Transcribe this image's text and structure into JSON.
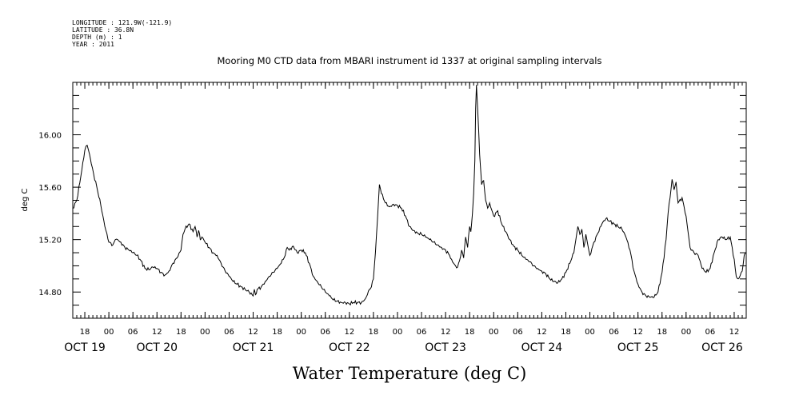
{
  "meta": {
    "longitude": "LONGITUDE : 121.9W(-121.9)",
    "latitude": "LATITUDE : 36.8N",
    "depth": "DEPTH (m) : 1",
    "year": "YEAR : 2011"
  },
  "chart_data": {
    "type": "line",
    "title": "Mooring M0 CTD data from MBARI instrument id 1337 at original sampling intervals",
    "xlabel": "Water Temperature (deg C)",
    "ylabel": "deg C",
    "x_units": "hours since 2011-10-19 00:00",
    "xlim": [
      15,
      183
    ],
    "ylim": [
      14.6,
      16.4
    ],
    "y_ticks": [
      14.8,
      15.2,
      15.6,
      16.0
    ],
    "y_tick_labels": [
      "14.80",
      "15.20",
      "15.60",
      "16.00"
    ],
    "hour_ticks": [
      {
        "t": 18,
        "label": "18"
      },
      {
        "t": 24,
        "label": "00"
      },
      {
        "t": 30,
        "label": "06"
      },
      {
        "t": 36,
        "label": "12"
      },
      {
        "t": 42,
        "label": "18"
      },
      {
        "t": 48,
        "label": "00"
      },
      {
        "t": 54,
        "label": "06"
      },
      {
        "t": 60,
        "label": "12"
      },
      {
        "t": 66,
        "label": "18"
      },
      {
        "t": 72,
        "label": "00"
      },
      {
        "t": 78,
        "label": "06"
      },
      {
        "t": 84,
        "label": "12"
      },
      {
        "t": 90,
        "label": "18"
      },
      {
        "t": 96,
        "label": "00"
      },
      {
        "t": 102,
        "label": "06"
      },
      {
        "t": 108,
        "label": "12"
      },
      {
        "t": 114,
        "label": "18"
      },
      {
        "t": 120,
        "label": "00"
      },
      {
        "t": 126,
        "label": "06"
      },
      {
        "t": 132,
        "label": "12"
      },
      {
        "t": 138,
        "label": "18"
      },
      {
        "t": 144,
        "label": "00"
      },
      {
        "t": 150,
        "label": "06"
      },
      {
        "t": 156,
        "label": "12"
      },
      {
        "t": 162,
        "label": "18"
      },
      {
        "t": 168,
        "label": "00"
      },
      {
        "t": 174,
        "label": "06"
      },
      {
        "t": 180,
        "label": "12"
      }
    ],
    "day_labels": [
      {
        "t": 18,
        "label": "OCT 19"
      },
      {
        "t": 36,
        "label": "OCT 20"
      },
      {
        "t": 60,
        "label": "OCT 21"
      },
      {
        "t": 84,
        "label": "OCT 22"
      },
      {
        "t": 108,
        "label": "OCT 23"
      },
      {
        "t": 132,
        "label": "OCT 24"
      },
      {
        "t": 156,
        "label": "OCT 25"
      },
      {
        "t": 177,
        "label": "OCT 26"
      }
    ],
    "series": [
      {
        "x": [
          15,
          16,
          17,
          18,
          18.6,
          19.2,
          19.6,
          20.2,
          21,
          22,
          23,
          24,
          25,
          25.6,
          26.2,
          27,
          28,
          29,
          30,
          31,
          32,
          33,
          34,
          35,
          36,
          37,
          38,
          39,
          40,
          41,
          42,
          42.5,
          43,
          44,
          45,
          45.5,
          46,
          46.4,
          46.8,
          47.2,
          48,
          49,
          50,
          51,
          52,
          53,
          54,
          55,
          56,
          57,
          58,
          59,
          60,
          60.3,
          60.6,
          61,
          62,
          63,
          64,
          65,
          66,
          67,
          68,
          68.5,
          69,
          70,
          71,
          72,
          73,
          74,
          75,
          76,
          77,
          78,
          79,
          80,
          81,
          82,
          83,
          84,
          85,
          86,
          87,
          88,
          88.5,
          89,
          89.5,
          90,
          90.5,
          91,
          91.5,
          92,
          93,
          94,
          95,
          96,
          97,
          98,
          99,
          100,
          101,
          102,
          103,
          104,
          105,
          106,
          107,
          108,
          109,
          109.5,
          110,
          110.5,
          111,
          111.5,
          112,
          112.5,
          113,
          113.5,
          114,
          114.3,
          114.7,
          115,
          115.3,
          115.5,
          115.7,
          116,
          116.5,
          117,
          117.5,
          118,
          118.5,
          119,
          120,
          121,
          122,
          123,
          124,
          125,
          126,
          127,
          128,
          129,
          130,
          131,
          132,
          133,
          134,
          135,
          136,
          137,
          138,
          139,
          140,
          140.5,
          141,
          141.5,
          142,
          142.5,
          143,
          144,
          145,
          146,
          147,
          148,
          149,
          150,
          151,
          152,
          153,
          154,
          155,
          156,
          157,
          158,
          159,
          160,
          161,
          162,
          163,
          163.5,
          164,
          164.5,
          165,
          165.5,
          166,
          167,
          168,
          169,
          170,
          171,
          172,
          173,
          174,
          175,
          176,
          177,
          178,
          179,
          180,
          180.5,
          181,
          182,
          182.5,
          183
        ],
        "y": [
          15.44,
          15.5,
          15.68,
          15.88,
          15.92,
          15.85,
          15.78,
          15.7,
          15.6,
          15.46,
          15.3,
          15.18,
          15.16,
          15.2,
          15.2,
          15.18,
          15.14,
          15.12,
          15.1,
          15.08,
          15.04,
          14.98,
          14.97,
          14.99,
          14.98,
          14.95,
          14.93,
          14.96,
          15.02,
          15.06,
          15.12,
          15.24,
          15.28,
          15.32,
          15.26,
          15.3,
          15.22,
          15.27,
          15.2,
          15.22,
          15.18,
          15.14,
          15.1,
          15.08,
          15.02,
          14.96,
          14.92,
          14.88,
          14.86,
          14.84,
          14.82,
          14.8,
          14.77,
          14.82,
          14.78,
          14.82,
          14.84,
          14.88,
          14.92,
          14.95,
          14.98,
          15.02,
          15.08,
          15.14,
          15.12,
          15.15,
          15.1,
          15.12,
          15.1,
          15.02,
          14.92,
          14.88,
          14.84,
          14.8,
          14.77,
          14.74,
          14.73,
          14.72,
          14.72,
          14.71,
          14.72,
          14.72,
          14.72,
          14.75,
          14.78,
          14.82,
          14.84,
          14.9,
          15.1,
          15.35,
          15.62,
          15.55,
          15.48,
          15.45,
          15.47,
          15.46,
          15.44,
          15.38,
          15.3,
          15.27,
          15.25,
          15.24,
          15.22,
          15.2,
          15.18,
          15.16,
          15.14,
          15.12,
          15.08,
          15.05,
          15.02,
          15.0,
          14.99,
          15.04,
          15.12,
          15.06,
          15.22,
          15.14,
          15.3,
          15.26,
          15.4,
          15.55,
          15.8,
          16.2,
          16.38,
          16.2,
          15.85,
          15.62,
          15.65,
          15.5,
          15.44,
          15.48,
          15.38,
          15.42,
          15.32,
          15.26,
          15.2,
          15.15,
          15.12,
          15.08,
          15.05,
          15.03,
          15.0,
          14.98,
          14.96,
          14.94,
          14.9,
          14.88,
          14.87,
          14.9,
          14.95,
          15.02,
          15.1,
          15.2,
          15.3,
          15.24,
          15.28,
          15.14,
          15.24,
          15.08,
          15.18,
          15.25,
          15.32,
          15.36,
          15.34,
          15.32,
          15.3,
          15.28,
          15.22,
          15.12,
          14.96,
          14.86,
          14.8,
          14.77,
          14.76,
          14.76,
          14.8,
          14.95,
          15.2,
          15.4,
          15.52,
          15.66,
          15.58,
          15.64,
          15.48,
          15.52,
          15.38,
          15.14,
          15.1,
          15.08,
          14.98,
          14.95,
          14.98,
          15.1,
          15.2,
          15.22,
          15.2,
          15.22,
          15.05,
          14.92,
          14.9,
          14.96,
          15.08,
          15.1
        ]
      }
    ]
  }
}
